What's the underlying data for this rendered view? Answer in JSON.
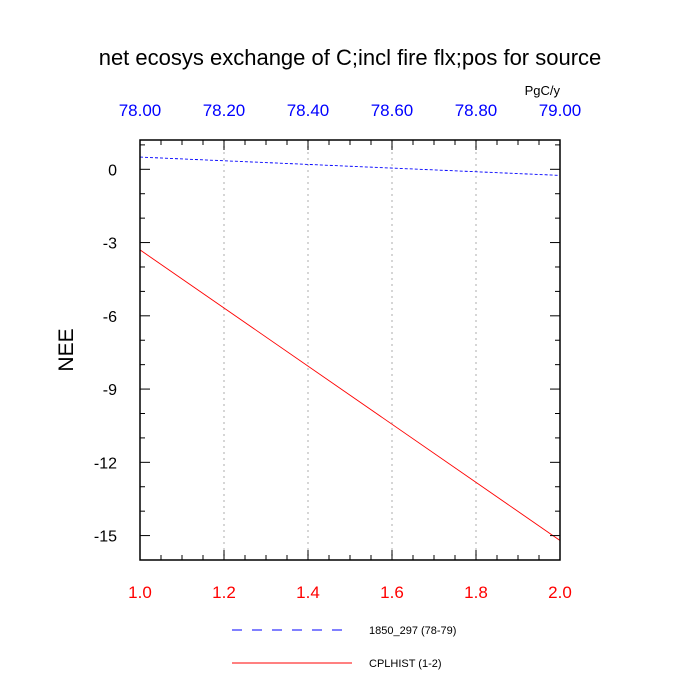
{
  "chart_data": {
    "type": "line",
    "title": "net ecosys exchange of C;incl fire flx;pos for source",
    "ylabel": "NEE",
    "units": "PgC/y",
    "ylim": [
      -16,
      1.2
    ],
    "yticks": [
      0,
      -3,
      -6,
      -9,
      -12,
      -15
    ],
    "ytick_labels": [
      "0",
      "-3",
      "-6",
      "-9",
      "-12",
      "-15"
    ],
    "x_bottom": {
      "range": [
        1.0,
        2.0
      ],
      "ticks": [
        1.0,
        1.2,
        1.4,
        1.6,
        1.8,
        2.0
      ],
      "labels": [
        "1.0",
        "1.2",
        "1.4",
        "1.6",
        "1.8",
        "2.0"
      ],
      "color": "#ff0000"
    },
    "x_top": {
      "range": [
        78.0,
        79.0
      ],
      "ticks": [
        78.0,
        78.2,
        78.4,
        78.6,
        78.8,
        79.0
      ],
      "labels": [
        "78.00",
        "78.20",
        "78.40",
        "78.60",
        "78.80",
        "79.00"
      ],
      "color": "#0000ff"
    },
    "grid": "vertical dotted",
    "series": [
      {
        "name": "1850_297 (78-79)",
        "axis": "top",
        "x": [
          78.0,
          79.0
        ],
        "y": [
          0.5,
          -0.25
        ],
        "color": "#0000ff",
        "style": "dashed"
      },
      {
        "name": "CPLHIST (1-2)",
        "axis": "bottom",
        "x": [
          1.0,
          2.0
        ],
        "y": [
          -3.3,
          -15.2
        ],
        "color": "#ff0000",
        "style": "solid"
      }
    ],
    "legend_position": "bottom"
  }
}
